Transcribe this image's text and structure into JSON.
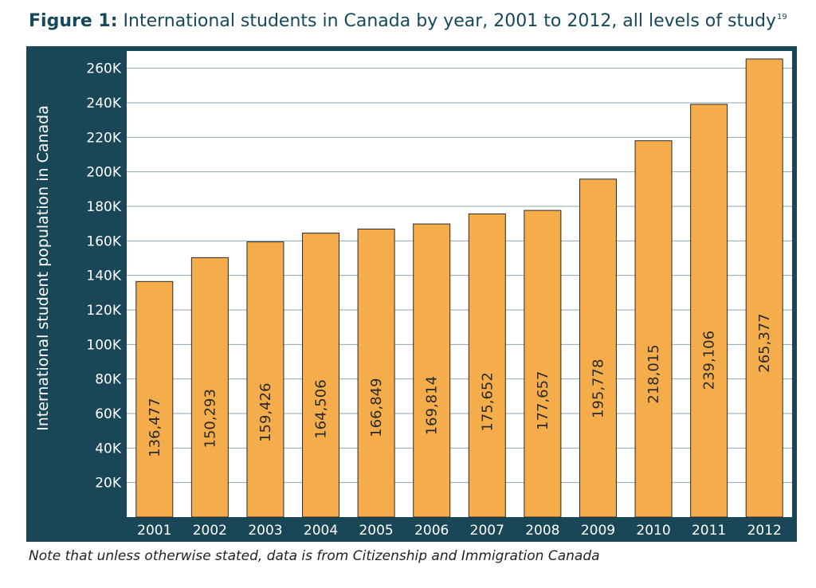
{
  "title": {
    "lead": "Figure 1:",
    "text": "International students in Canada by year, 2001 to 2012, all levels of study",
    "footnote": "19"
  },
  "note": "Note that unless otherwise stated, data is from Citizenship and Immigration Canada",
  "colors": {
    "frame": "#1a4757",
    "bar": "#f5ac4b",
    "bar_border": "#2a2a2a",
    "grid": "#8fa6b2",
    "plot_bg": "#ffffff",
    "axis_text": "#ffffff"
  },
  "chart_data": {
    "type": "bar",
    "categories": [
      "2001",
      "2002",
      "2003",
      "2004",
      "2005",
      "2006",
      "2007",
      "2008",
      "2009",
      "2010",
      "2011",
      "2012"
    ],
    "values": [
      136477,
      150293,
      159426,
      164506,
      166849,
      169814,
      175652,
      177657,
      195778,
      218015,
      239106,
      265377
    ],
    "value_labels": [
      "136,477",
      "150,293",
      "159,426",
      "164,506",
      "166,849",
      "169,814",
      "175,652",
      "177,657",
      "195,778",
      "218,015",
      "239,106",
      "265,377"
    ],
    "ylabel": "International student population in Canada",
    "xlabel": "",
    "ylim": [
      0,
      270000
    ],
    "yticks": [
      20000,
      40000,
      60000,
      80000,
      100000,
      120000,
      140000,
      160000,
      180000,
      200000,
      220000,
      240000,
      260000
    ],
    "ytick_labels": [
      "20K",
      "40K",
      "60K",
      "80K",
      "100K",
      "120K",
      "140K",
      "160K",
      "180K",
      "200K",
      "220K",
      "240K",
      "260K"
    ],
    "grid": true,
    "legend": "none"
  }
}
